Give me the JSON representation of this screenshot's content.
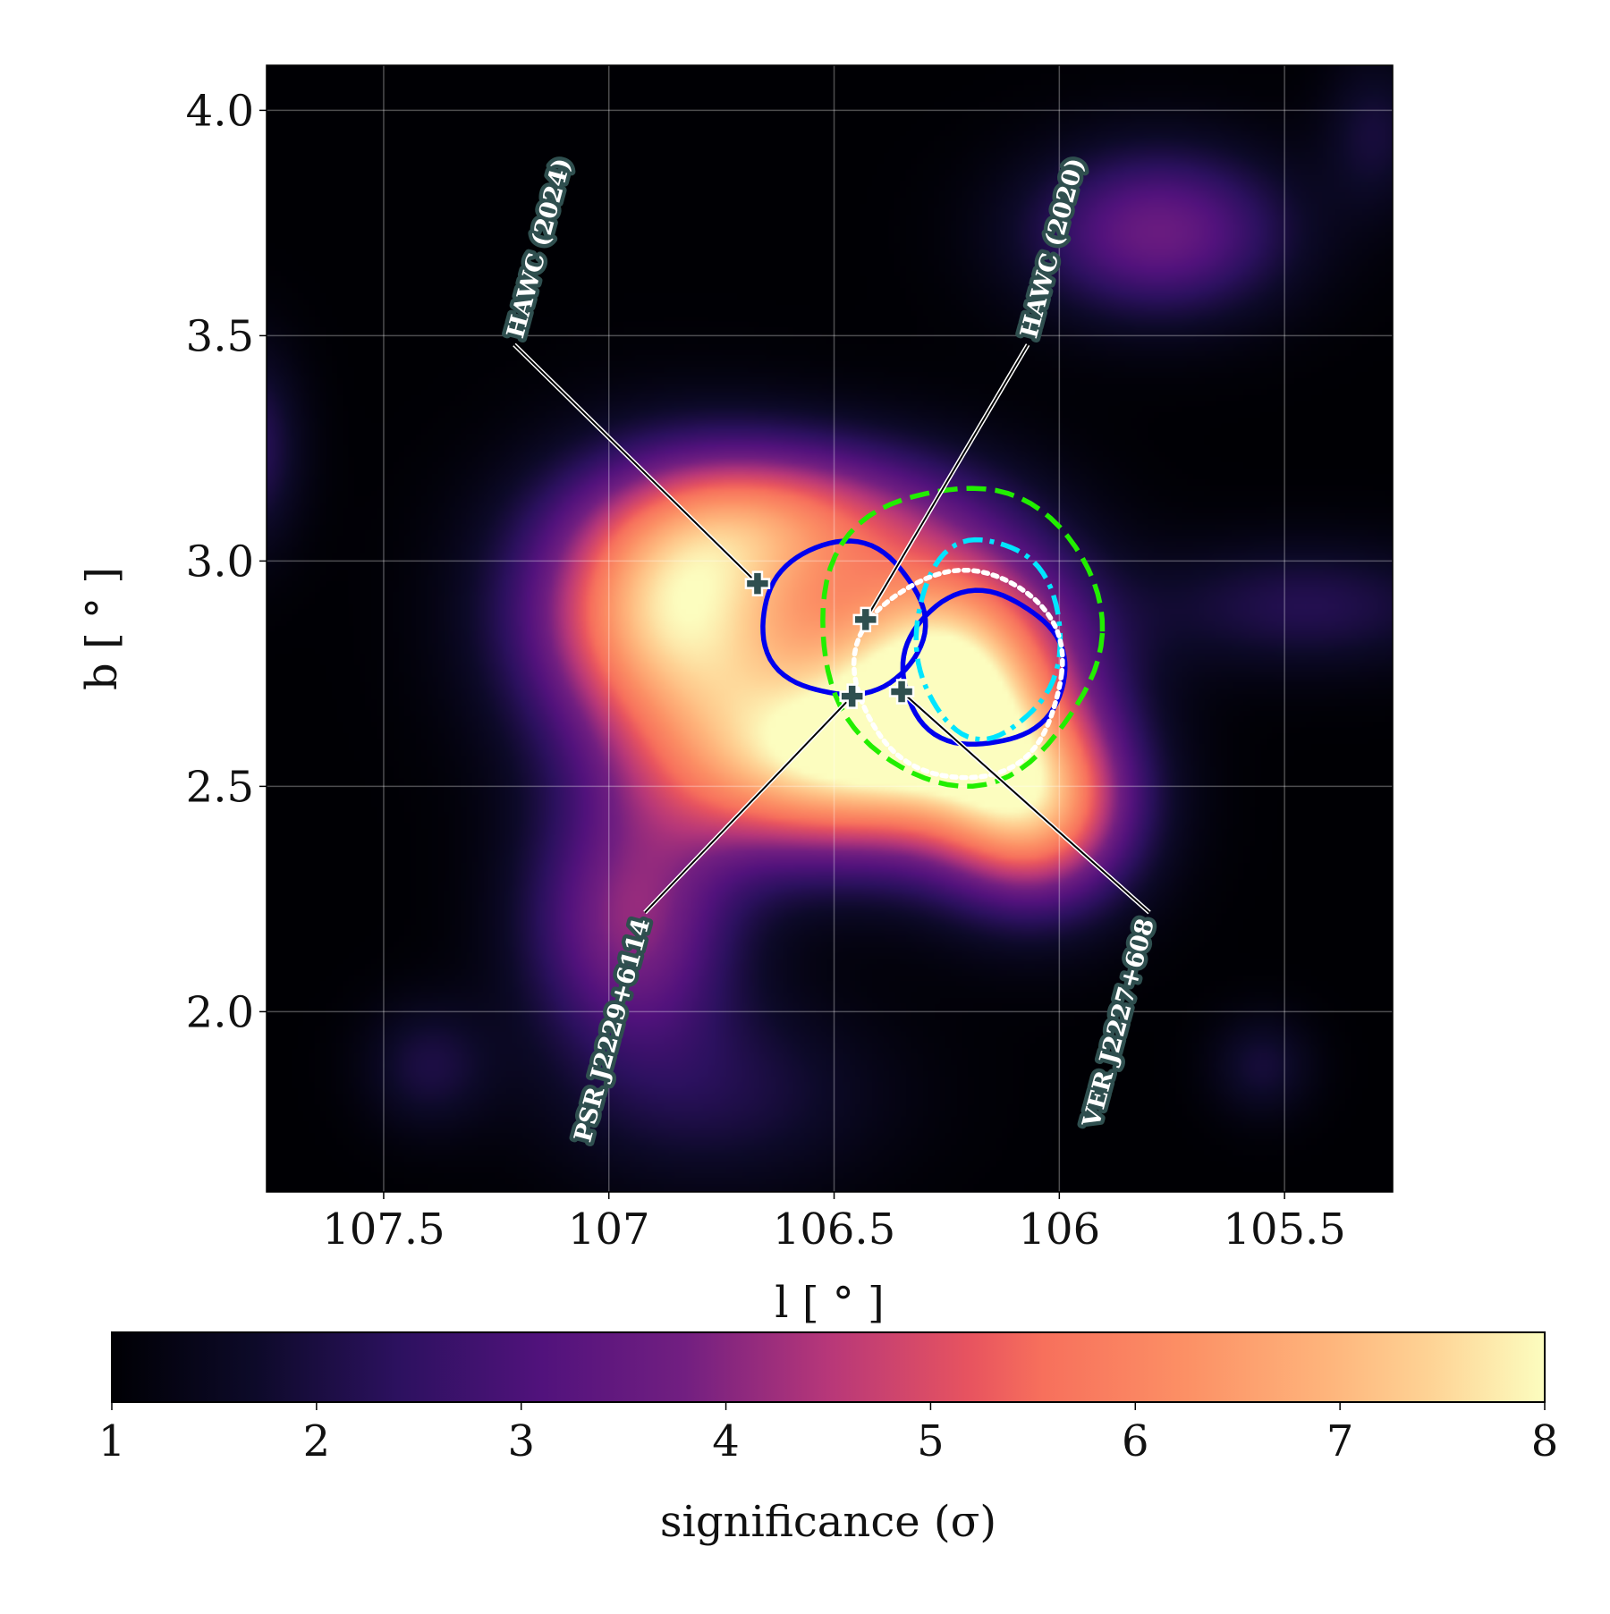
{
  "chart_data": {
    "type": "heatmap",
    "xlabel": "l [ ° ]",
    "ylabel": "b [ ° ]",
    "xlim": [
      107.76,
      105.26
    ],
    "ylim": [
      1.6,
      4.1
    ],
    "x_ticks": [
      {
        "value": 107.5,
        "label": "107.5"
      },
      {
        "value": 107.0,
        "label": "107"
      },
      {
        "value": 106.5,
        "label": "106.5"
      },
      {
        "value": 106.0,
        "label": "106"
      },
      {
        "value": 105.5,
        "label": "105.5"
      }
    ],
    "y_ticks": [
      {
        "value": 2.0,
        "label": "2.0"
      },
      {
        "value": 2.5,
        "label": "2.5"
      },
      {
        "value": 3.0,
        "label": "3.0"
      },
      {
        "value": 3.5,
        "label": "3.5"
      },
      {
        "value": 4.0,
        "label": "4.0"
      }
    ],
    "grid": true,
    "colormap": "magma",
    "colorbar": {
      "label": "significance (σ)",
      "range": [
        1,
        8
      ],
      "ticks": [
        "1",
        "2",
        "3",
        "4",
        "5",
        "6",
        "7",
        "8"
      ]
    },
    "emission_blobs": [
      {
        "l": 106.85,
        "b": 2.88,
        "sl": 0.22,
        "sb": 0.2,
        "amp": 6.3
      },
      {
        "l": 106.25,
        "b": 2.75,
        "sl": 0.2,
        "sb": 0.2,
        "amp": 6.8
      },
      {
        "l": 106.55,
        "b": 2.55,
        "sl": 0.25,
        "sb": 0.15,
        "amp": 5.3
      },
      {
        "l": 106.05,
        "b": 2.45,
        "sl": 0.15,
        "sb": 0.15,
        "amp": 4.8
      },
      {
        "l": 106.95,
        "b": 2.2,
        "sl": 0.16,
        "sb": 0.2,
        "amp": 3.0
      },
      {
        "l": 106.6,
        "b": 3.1,
        "sl": 0.25,
        "sb": 0.12,
        "amp": 3.2
      },
      {
        "l": 106.75,
        "b": 1.82,
        "sl": 0.25,
        "sb": 0.15,
        "amp": 1.0
      },
      {
        "l": 105.78,
        "b": 3.73,
        "sl": 0.2,
        "sb": 0.13,
        "amp": 2.6
      },
      {
        "l": 105.3,
        "b": 3.95,
        "sl": 0.08,
        "sb": 0.12,
        "amp": 0.9
      },
      {
        "l": 107.8,
        "b": 3.25,
        "sl": 0.08,
        "sb": 0.15,
        "amp": 1.4
      },
      {
        "l": 105.45,
        "b": 2.9,
        "sl": 0.25,
        "sb": 0.1,
        "amp": 1.2
      },
      {
        "l": 107.4,
        "b": 1.88,
        "sl": 0.1,
        "sb": 0.1,
        "amp": 1.0
      },
      {
        "l": 105.55,
        "b": 1.88,
        "sl": 0.08,
        "sb": 0.08,
        "amp": 0.9
      }
    ],
    "contours": [
      {
        "color": "#0000ee",
        "style": "solid",
        "center": [
          106.48,
          2.87
        ],
        "radius_l": 0.18,
        "radius_b": 0.17
      },
      {
        "color": "#0000ee",
        "style": "solid",
        "center": [
          106.17,
          2.76
        ],
        "radius_l": 0.18,
        "radius_b": 0.17
      },
      {
        "color": "#00e5ff",
        "style": "dashdot",
        "center": [
          106.16,
          2.83
        ],
        "radius_l": 0.16,
        "radius_b": 0.22
      },
      {
        "color": "#22ee00",
        "style": "dashed",
        "center": [
          106.22,
          2.84
        ],
        "radius_l": 0.31,
        "radius_b": 0.33
      },
      {
        "color": "#ffffff",
        "style": "dotted",
        "center": [
          106.22,
          2.75
        ],
        "radius_l": 0.23,
        "radius_b": 0.23
      }
    ],
    "sources": [
      {
        "name": "HAWC (2024)",
        "l": 106.67,
        "b": 2.95,
        "label_l": 107.21,
        "label_b": 3.48
      },
      {
        "name": "HAWC (2020)",
        "l": 106.43,
        "b": 2.87,
        "label_l": 106.07,
        "label_b": 3.48
      },
      {
        "name": "PSR J2229+6114",
        "l": 106.46,
        "b": 2.7,
        "label_l": 106.92,
        "label_b": 2.22
      },
      {
        "name": "VER J2227+608",
        "l": 106.35,
        "b": 2.71,
        "label_l": 105.8,
        "label_b": 2.22
      }
    ]
  }
}
